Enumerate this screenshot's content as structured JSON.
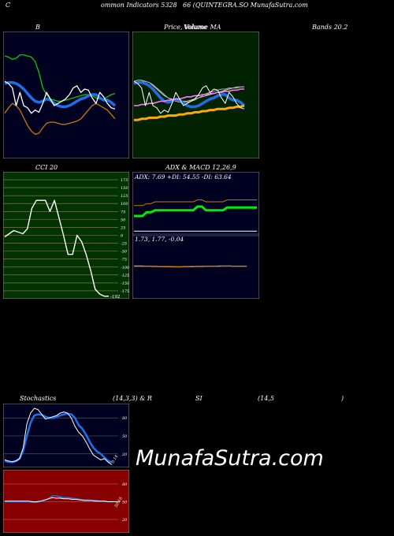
{
  "header": {
    "c": "C",
    "title": "ommon  Indicators 5328",
    "symbol": "66  (QUINTEGRA.SO MunafaSutra.com"
  },
  "labels": {
    "bollinger_b": "B",
    "price_volume": "Price,  Volume  MA",
    "volume_overlap": "Volume",
    "bands": "Bands 20.2",
    "cci": "CCI 20",
    "adx_macd": "ADX  & MACD 12,26,9",
    "stoch": "Stochastics",
    "stoch_params": "(14,3,3) & R",
    "si": "SI",
    "si_params": "(14,5",
    "paren": ")"
  },
  "watermark": "MunafaSutra.com",
  "colors": {
    "bollinger_bg": "#000020",
    "price_bg": "#002200",
    "cci_bg": "#003300",
    "adx_bg": "#000020",
    "stoch_bg": "#000020",
    "rsi_bg": "#880000",
    "band_green": "#00cc00",
    "band_blue": "#1e6fe6",
    "band_orange": "#cc7700",
    "price_white": "#ffffff",
    "adx_green": "#00ee00",
    "adx_orange": "#cc7700"
  },
  "chart_data": [
    {
      "id": "bollinger",
      "type": "line",
      "title": "B",
      "x": [
        1,
        2,
        3,
        4,
        5,
        6,
        7,
        8,
        9,
        10,
        11,
        12,
        13,
        14,
        15,
        16,
        17,
        18,
        19,
        20,
        21,
        22,
        23,
        24,
        25,
        26,
        27,
        28,
        29,
        30
      ],
      "ylim": [
        0,
        100
      ],
      "series": [
        {
          "color": "#00cc00",
          "values": [
            85,
            84,
            82,
            83,
            86,
            86,
            85,
            84,
            80,
            70,
            56,
            50,
            46,
            45,
            44,
            44,
            45,
            46,
            47,
            48,
            49,
            50,
            50,
            49,
            47,
            46,
            46,
            48,
            50,
            51
          ]
        },
        {
          "color": "#1e6fe6",
          "values": [
            60,
            61,
            61,
            60,
            58,
            55,
            51,
            47,
            44,
            43,
            44,
            46,
            45,
            42,
            40,
            39,
            39,
            40,
            42,
            44,
            46,
            47,
            49,
            50,
            50,
            47,
            45,
            45,
            43,
            40
          ]
        },
        {
          "color": "#cc7700",
          "values": [
            33,
            38,
            42,
            40,
            36,
            29,
            22,
            17,
            14,
            15,
            20,
            24,
            25,
            25,
            24,
            23,
            23,
            24,
            25,
            26,
            28,
            32,
            36,
            40,
            42,
            40,
            38,
            36,
            32,
            28
          ]
        },
        {
          "color": "#ffffff",
          "values": [
            62,
            60,
            56,
            40,
            52,
            40,
            38,
            33,
            36,
            34,
            42,
            52,
            46,
            40,
            42,
            44,
            46,
            50,
            56,
            58,
            52,
            55,
            54,
            47,
            42,
            52,
            48,
            42,
            38,
            37
          ]
        }
      ]
    },
    {
      "id": "price_volume",
      "type": "line",
      "title": "Price,  Volume  MA",
      "x": [
        1,
        2,
        3,
        4,
        5,
        6,
        7,
        8,
        9,
        10,
        11,
        12,
        13,
        14,
        15,
        16,
        17,
        18,
        19,
        20,
        21,
        22,
        23,
        24,
        25,
        26,
        27,
        28,
        29,
        30
      ],
      "ylim": [
        0,
        100
      ],
      "series": [
        {
          "color": "#cccccc",
          "values": [
            62,
            63,
            63,
            62,
            61,
            58,
            55,
            52,
            49,
            47,
            46,
            45,
            44,
            44,
            44,
            45,
            46,
            47,
            48,
            49,
            50,
            51,
            52,
            53,
            54,
            55,
            56,
            56,
            57,
            57
          ]
        },
        {
          "color": "#aaaaaa",
          "values": [
            60,
            61,
            62,
            62,
            61,
            59,
            56,
            53,
            50,
            47,
            45,
            44,
            43,
            43,
            43,
            44,
            45,
            47,
            49,
            51,
            52,
            53,
            54,
            55,
            55,
            56,
            56,
            57,
            57,
            57
          ]
        },
        {
          "color": "#1e6fe6",
          "values": [
            60,
            61,
            61,
            60,
            58,
            55,
            51,
            47,
            44,
            43,
            44,
            46,
            45,
            42,
            40,
            39,
            39,
            40,
            42,
            44,
            46,
            47,
            49,
            50,
            50,
            47,
            45,
            45,
            43,
            40
          ]
        },
        {
          "color": "#ff77ff",
          "values": [
            40,
            40,
            41,
            41,
            42,
            42,
            43,
            44,
            44,
            45,
            45,
            46,
            46,
            47,
            48,
            48,
            49,
            49,
            50,
            50,
            51,
            51,
            52,
            52,
            53,
            53,
            54,
            54,
            55,
            55
          ]
        },
        {
          "color": "#ffaa00",
          "values": [
            27,
            27,
            28,
            28,
            29,
            29,
            29,
            30,
            30,
            31,
            31,
            31,
            32,
            32,
            33,
            33,
            34,
            34,
            35,
            35,
            36,
            36,
            37,
            37,
            37,
            38,
            38,
            39,
            39,
            40
          ]
        },
        {
          "color": "#ffffff",
          "values": [
            62,
            60,
            56,
            40,
            52,
            40,
            38,
            33,
            36,
            34,
            42,
            52,
            46,
            40,
            42,
            44,
            46,
            50,
            56,
            58,
            52,
            55,
            54,
            47,
            42,
            52,
            48,
            42,
            38,
            37
          ]
        }
      ]
    },
    {
      "id": "cci",
      "type": "line",
      "title": "CCI 20",
      "yticks": [
        175,
        150,
        125,
        100,
        75,
        50,
        25,
        0,
        -25,
        -50,
        -75,
        -100,
        -125,
        -150,
        -175
      ],
      "ylim": [
        -190,
        190
      ],
      "x": [
        1,
        2,
        3,
        4,
        5,
        6,
        7,
        8,
        9,
        10,
        11,
        12,
        13,
        14,
        15,
        16,
        17,
        18,
        19,
        20,
        21,
        22,
        23,
        24
      ],
      "values": [
        -5,
        5,
        15,
        10,
        5,
        20,
        85,
        110,
        110,
        110,
        75,
        110,
        55,
        0,
        -60,
        -60,
        0,
        -20,
        -60,
        -110,
        -170,
        -185,
        -192,
        -192
      ],
      "last_value_label": "-192"
    },
    {
      "id": "adx",
      "type": "line",
      "title": "ADX  & MACD 12,26,9",
      "annotation": "ADX: 7.69  +DI: 54.55  -DI: 63.64",
      "x": [
        1,
        2,
        3,
        4,
        5,
        6,
        7,
        8,
        9,
        10,
        11,
        12,
        13,
        14,
        15,
        16,
        17,
        18,
        19,
        20,
        21,
        22,
        23,
        24,
        25,
        26,
        27,
        28,
        29,
        30
      ],
      "ylim": [
        0,
        100
      ],
      "series": [
        {
          "name": "+DI",
          "color": "#00ee00",
          "values": [
            40,
            40,
            40,
            48,
            48,
            52,
            52,
            52,
            52,
            52,
            52,
            52,
            52,
            52,
            52,
            60,
            60,
            52,
            52,
            52,
            52,
            52,
            58,
            58,
            58,
            58,
            58,
            58,
            58,
            58
          ]
        },
        {
          "name": "-DI",
          "color": "#cc7700",
          "values": [
            62,
            62,
            62,
            66,
            66,
            70,
            70,
            70,
            70,
            70,
            70,
            70,
            70,
            70,
            70,
            74,
            74,
            70,
            70,
            70,
            70,
            70,
            74,
            74,
            74,
            74,
            74,
            74,
            74,
            74
          ]
        },
        {
          "name": "ADX",
          "color": "#ffffff",
          "values": [
            8,
            8,
            8,
            8,
            8,
            8,
            8,
            8,
            8,
            8,
            8,
            8,
            8,
            8,
            8,
            8,
            8,
            8,
            8,
            8,
            8,
            8,
            8,
            8,
            8,
            8,
            8,
            8,
            8,
            8
          ]
        }
      ]
    },
    {
      "id": "macd",
      "type": "line",
      "annotation": "1.73,  1.77,  -0.04",
      "x": [
        1,
        2,
        3,
        4,
        5,
        6,
        7,
        8,
        9,
        10,
        11,
        12,
        13,
        14,
        15,
        16,
        17,
        18,
        19,
        20,
        21,
        22,
        23,
        24,
        25,
        26,
        27,
        28,
        29,
        30
      ],
      "ylim": [
        -10,
        10
      ],
      "series": [
        {
          "name": "MACD",
          "color": "#ffffff",
          "values": [
            0.2,
            0.2,
            0.2,
            0.1,
            0.1,
            0,
            0,
            -0.1,
            -0.1,
            -0.1,
            -0.2,
            -0.2,
            -0.2,
            -0.1,
            -0.1,
            -0.1,
            0,
            0,
            0,
            0.1,
            0.1,
            0.1,
            0.2,
            0.2,
            0.2,
            0.2,
            0.1,
            0.1,
            0.1,
            0.1
          ]
        },
        {
          "name": "Signal",
          "color": "#cc7700",
          "values": [
            0.1,
            0.1,
            0.1,
            0.1,
            0,
            0,
            0,
            -0.1,
            -0.1,
            -0.1,
            -0.1,
            -0.2,
            -0.2,
            -0.1,
            -0.1,
            0,
            0,
            0,
            0,
            0.1,
            0.1,
            0.1,
            0.1,
            0.2,
            0.2,
            0.2,
            0.1,
            0.1,
            0.1,
            0.1
          ]
        }
      ]
    },
    {
      "id": "stochastics",
      "type": "line",
      "title": "Stochastics",
      "yticks": [
        80,
        50,
        20
      ],
      "ylim": [
        0,
        100
      ],
      "x": [
        1,
        2,
        3,
        4,
        5,
        6,
        7,
        8,
        9,
        10,
        11,
        12,
        13,
        14,
        15,
        16,
        17,
        18,
        19,
        20,
        21,
        22,
        23,
        24,
        25,
        26,
        27,
        28,
        29,
        30
      ],
      "last_value_label": "0.14",
      "series": [
        {
          "color": "#1e6fe6",
          "values": [
            8,
            7,
            6,
            8,
            12,
            25,
            50,
            72,
            84,
            86,
            85,
            82,
            80,
            80,
            82,
            84,
            86,
            87,
            86,
            80,
            68,
            62,
            52,
            40,
            30,
            24,
            20,
            14,
            8,
            6
          ]
        },
        {
          "color": "#ffffff",
          "values": [
            10,
            8,
            7,
            8,
            12,
            30,
            70,
            88,
            96,
            94,
            86,
            78,
            80,
            82,
            84,
            88,
            90,
            88,
            80,
            66,
            56,
            50,
            40,
            28,
            18,
            14,
            10,
            12,
            6,
            2
          ]
        }
      ]
    },
    {
      "id": "rsi",
      "type": "line",
      "yticks": [
        80,
        50,
        20
      ],
      "ylim": [
        0,
        100
      ],
      "x": [
        1,
        2,
        3,
        4,
        5,
        6,
        7,
        8,
        9,
        10,
        11,
        12,
        13,
        14,
        15,
        16,
        17,
        18,
        19,
        20,
        21,
        22,
        23,
        24,
        25,
        26,
        27,
        28,
        29,
        30
      ],
      "last_value_label": "50.16",
      "series": [
        {
          "color": "#1e6fe6",
          "values": [
            50,
            50,
            50,
            50,
            50,
            50,
            50,
            49,
            49,
            50,
            52,
            55,
            60,
            60,
            58,
            57,
            57,
            56,
            55,
            54,
            53,
            53,
            52,
            52,
            51,
            51,
            50,
            50,
            50,
            50
          ]
        },
        {
          "color": "#ffffff",
          "values": [
            51,
            51,
            51,
            51,
            51,
            51,
            51,
            50,
            50,
            51,
            53,
            55,
            57,
            56,
            56,
            55,
            55,
            54,
            54,
            53,
            52,
            52,
            52,
            51,
            51,
            51,
            50,
            50,
            50,
            50
          ]
        }
      ]
    }
  ]
}
